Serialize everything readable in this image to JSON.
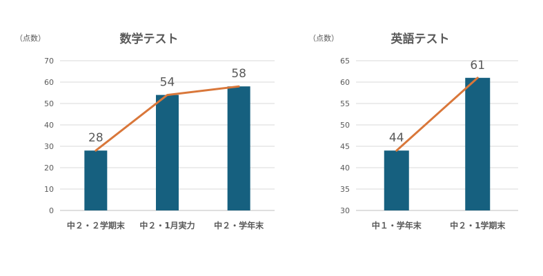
{
  "chart_data": [
    {
      "type": "bar",
      "title": "数学テスト",
      "ylabel": "（点数）",
      "categories": [
        "中２・２学期末",
        "中２・1月実力",
        "中２・学年末"
      ],
      "values": [
        28,
        54,
        58
      ],
      "ylim": [
        0,
        70
      ],
      "yticks": [
        0,
        10,
        20,
        30,
        40,
        50,
        60,
        70
      ],
      "overlay_line": true,
      "data_labels": true,
      "grid": true,
      "colors": {
        "bar": "#16607f",
        "line": "#d9773a"
      }
    },
    {
      "type": "bar",
      "title": "英語テスト",
      "ylabel": "（点数）",
      "categories": [
        "中１・学年末",
        "中２・1学期末"
      ],
      "values": [
        44,
        61
      ],
      "ylim": [
        30,
        65
      ],
      "yticks": [
        30,
        35,
        40,
        45,
        50,
        55,
        60,
        65
      ],
      "overlay_line": true,
      "data_labels": true,
      "grid": true,
      "colors": {
        "bar": "#16607f",
        "line": "#d9773a"
      }
    }
  ]
}
